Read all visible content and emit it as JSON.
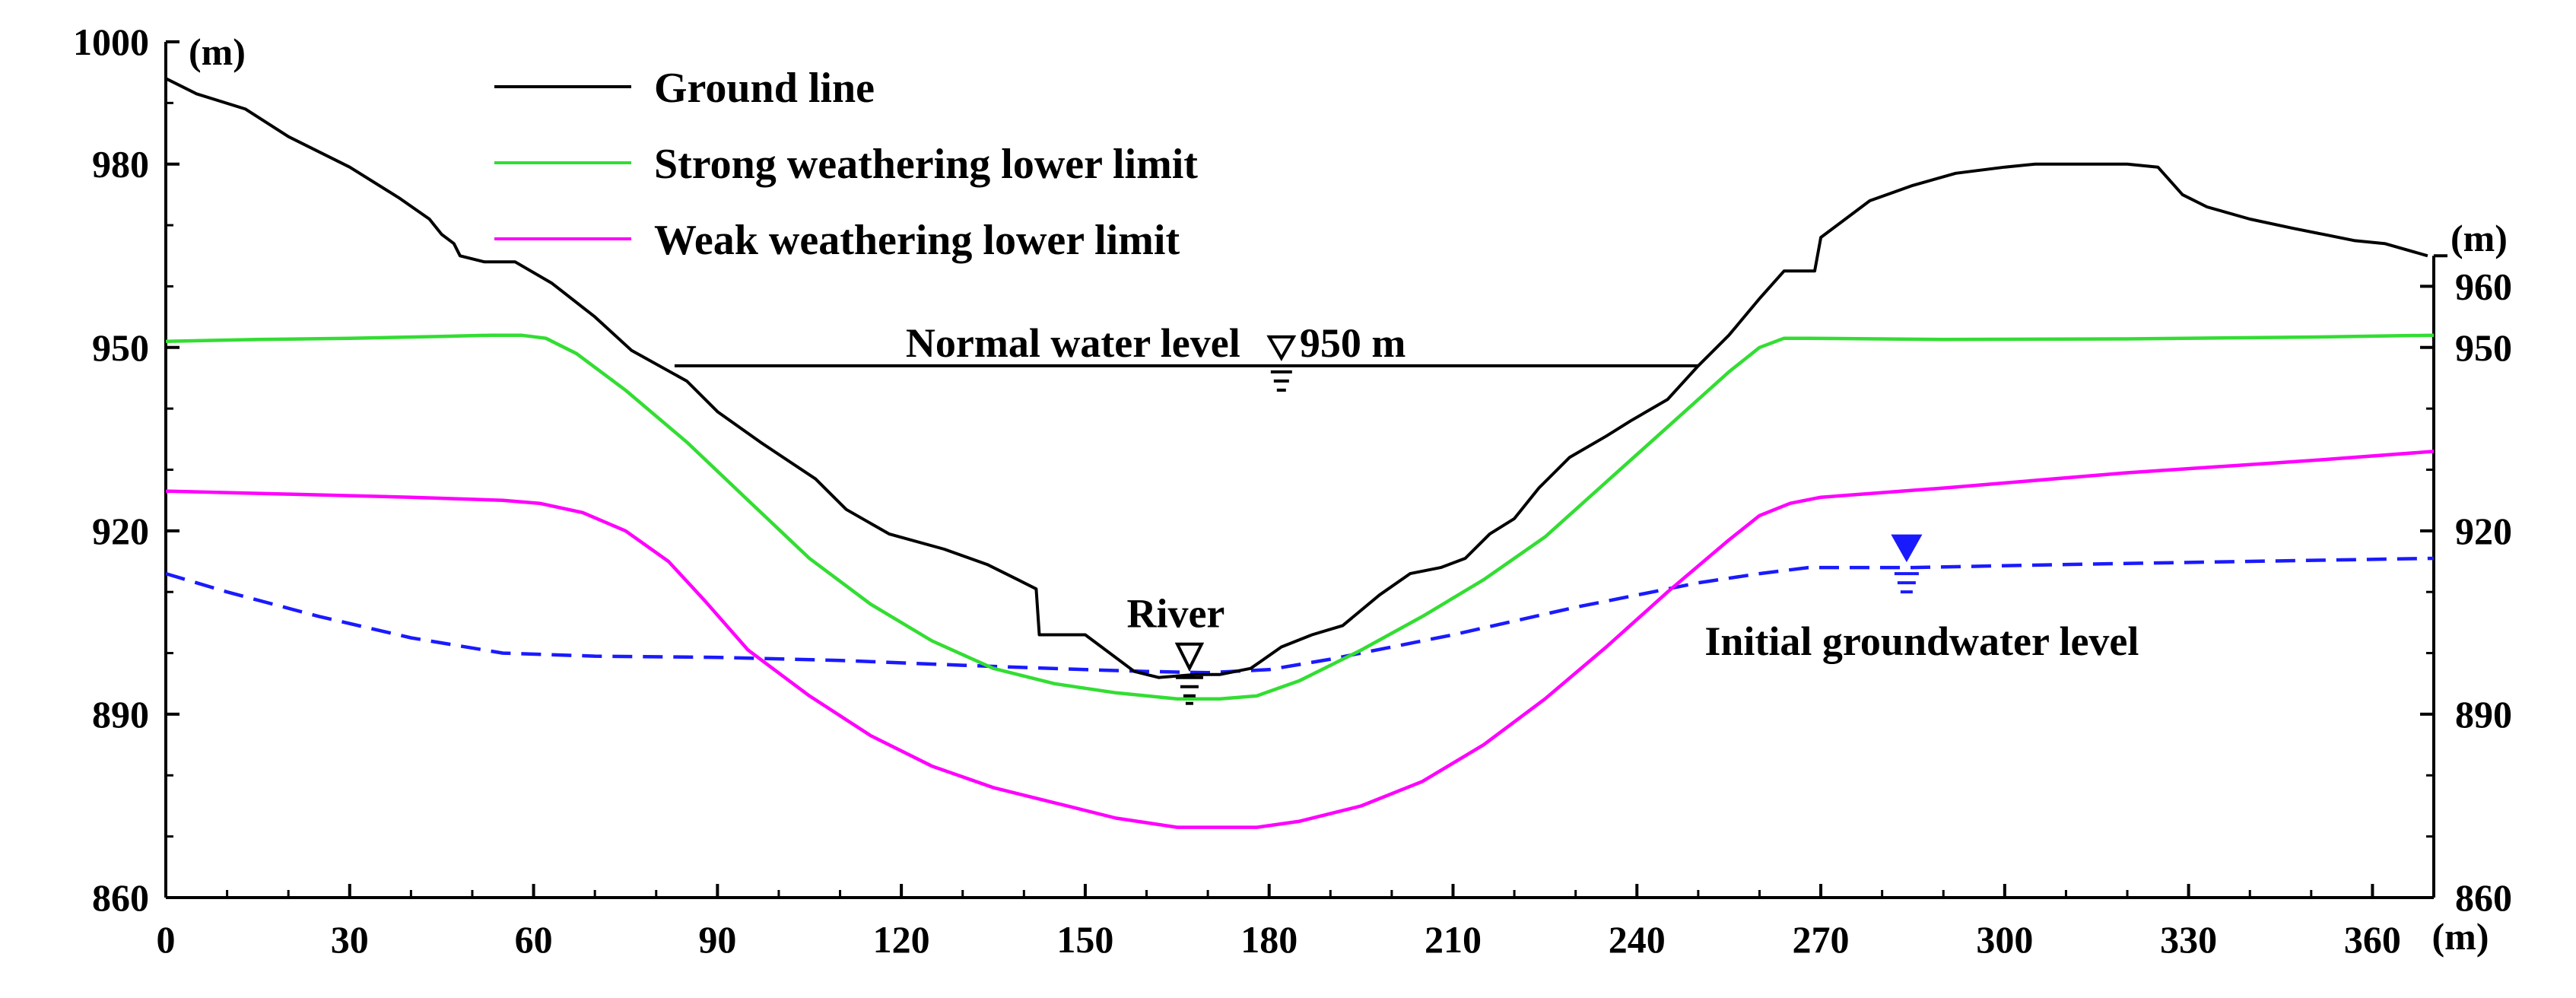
{
  "chart_data": {
    "type": "line",
    "title": "",
    "xlabel": "(m)",
    "ylabel_left": "(m)",
    "ylabel_right": "(m)",
    "xlim": [
      0,
      370
    ],
    "ylim": [
      860,
      1000
    ],
    "x_ticks": [
      0,
      30,
      60,
      90,
      120,
      150,
      180,
      210,
      240,
      270,
      300,
      330,
      360
    ],
    "y_ticks_left": [
      860,
      890,
      920,
      950,
      980,
      1000
    ],
    "y_ticks_right": [
      860,
      890,
      920,
      950,
      960
    ],
    "legend": {
      "placement": "top-left"
    },
    "series": [
      {
        "name": "Ground line",
        "color": "#000000",
        "style": "solid",
        "x": [
          0,
          5,
          13,
          20,
          30,
          38,
          43,
          45,
          47,
          48,
          52,
          57,
          63,
          70,
          76,
          85,
          90,
          97,
          106,
          111,
          118,
          127,
          134,
          139,
          142,
          142.5,
          150,
          158,
          162,
          168,
          172,
          177,
          182,
          187,
          192,
          198,
          203,
          208,
          212,
          216,
          220,
          224,
          229,
          235,
          239,
          245,
          250,
          255,
          260,
          264,
          268,
          269,
          270,
          278,
          285,
          292,
          300,
          305,
          310,
          315,
          320,
          325,
          329,
          333,
          340,
          347,
          352,
          357,
          362,
          369
        ],
        "y": [
          994,
          991.5,
          989,
          984.5,
          979.5,
          974.5,
          971,
          968.5,
          967,
          965,
          964,
          964,
          960.5,
          955,
          949.5,
          944.5,
          939.5,
          934.5,
          928.5,
          923.5,
          919.5,
          917,
          914.5,
          912,
          910.5,
          903,
          903,
          897,
          896,
          896.5,
          896.5,
          897.5,
          901,
          903,
          904.5,
          909.5,
          913,
          914,
          915.5,
          919.5,
          922,
          927,
          932,
          935.5,
          938,
          941.5,
          947,
          952,
          958,
          962.5,
          962.5,
          962.5,
          968,
          974,
          976.5,
          978.5,
          979.5,
          980,
          980,
          980,
          980,
          979.5,
          975,
          973,
          971,
          969.5,
          968.5,
          967.5,
          967,
          965
        ]
      },
      {
        "name": "Strong weathering lower limit",
        "color": "#33dd33",
        "style": "solid",
        "x": [
          0,
          15,
          30,
          45,
          53,
          58,
          62,
          67,
          75,
          85,
          95,
          105,
          115,
          125,
          135,
          145,
          155,
          165,
          172,
          178,
          185,
          195,
          205,
          215,
          225,
          235,
          245,
          255,
          260,
          264,
          268,
          290,
          320,
          350,
          370
        ],
        "y": [
          951,
          951.3,
          951.5,
          951.8,
          952,
          952,
          951.5,
          949,
          943,
          934.5,
          925,
          915.5,
          908,
          902,
          897.5,
          895,
          893.5,
          892.5,
          892.5,
          893,
          895.5,
          900.5,
          906,
          912,
          919,
          928,
          937,
          946,
          950,
          951.5,
          951.5,
          951.3,
          951.4,
          951.7,
          952
        ]
      },
      {
        "name": "Weak weathering lower limit",
        "color": "#ff00ff",
        "style": "solid",
        "x": [
          0,
          20,
          40,
          55,
          61,
          68,
          75,
          82,
          88,
          95,
          105,
          115,
          125,
          135,
          145,
          155,
          165,
          172,
          178,
          185,
          195,
          205,
          215,
          225,
          235,
          245,
          255,
          260,
          265,
          270,
          290,
          320,
          350,
          370
        ],
        "y": [
          926.5,
          926,
          925.5,
          925,
          924.5,
          923,
          920,
          915,
          908.5,
          900.5,
          893,
          886.5,
          881.5,
          878,
          875.5,
          873,
          871.5,
          871.5,
          871.5,
          872.5,
          875,
          879,
          885,
          892.5,
          901,
          910,
          918.5,
          922.5,
          924.5,
          925.5,
          927,
          929.5,
          931.5,
          933
        ]
      },
      {
        "name": "Initial groundwater level",
        "color": "#1a1aff",
        "style": "dashed",
        "x": [
          0,
          10,
          25,
          40,
          55,
          70,
          90,
          110,
          130,
          150,
          160,
          170,
          180,
          190,
          210,
          230,
          250,
          260,
          268,
          285,
          310,
          340,
          370
        ],
        "y": [
          913,
          910,
          906,
          902.5,
          900,
          899.5,
          899.3,
          898.8,
          898,
          897.3,
          897,
          896.8,
          897.3,
          899,
          903,
          907.5,
          911.5,
          913,
          914,
          914,
          914.5,
          915,
          915.5
        ]
      }
    ],
    "annotations": [
      {
        "text": "Normal water level",
        "value": "950 m",
        "elevation": 947,
        "x_from": 83,
        "x_to": 250
      },
      {
        "text": "River",
        "x": 167,
        "elevation": 896.5
      },
      {
        "text": "Initial groundwater level",
        "x": 284,
        "elevation": 914
      }
    ]
  }
}
